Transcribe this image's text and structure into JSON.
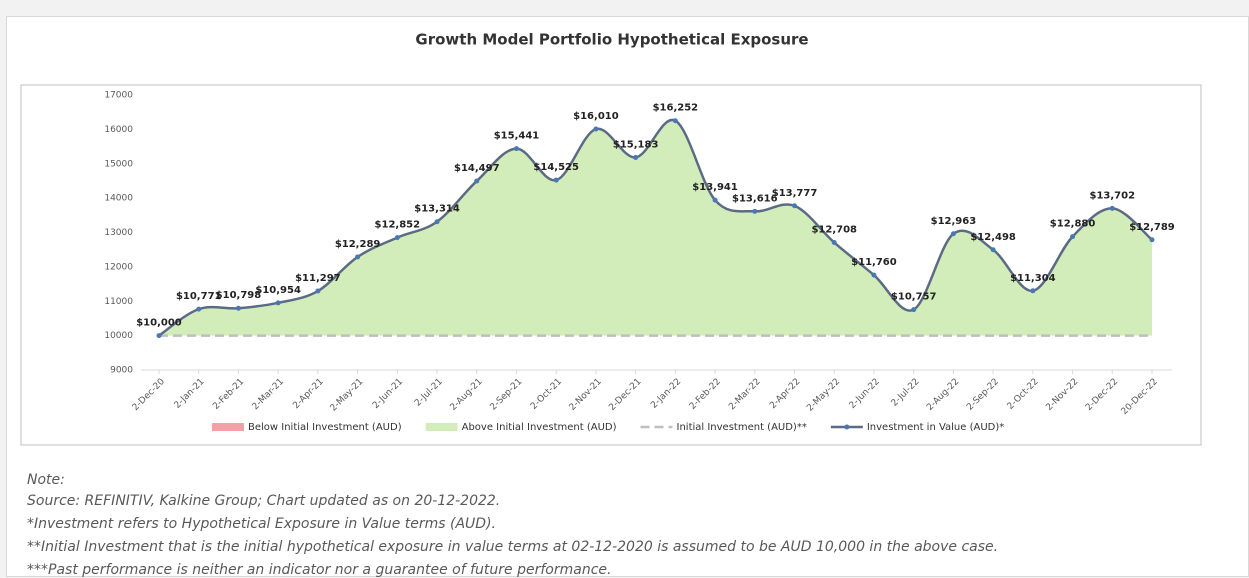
{
  "chart_data": {
    "type": "line",
    "title": "Growth Model Portfolio Hypothetical Exposure",
    "categories": [
      "2-Dec-20",
      "2-Jan-21",
      "2-Feb-21",
      "2-Mar-21",
      "2-Apr-21",
      "2-May-21",
      "2-Jun-21",
      "2-Jul-21",
      "2-Aug-21",
      "2-Sep-21",
      "2-Oct-21",
      "2-Nov-21",
      "2-Dec-21",
      "2-Jan-22",
      "2-Feb-22",
      "2-Mar-22",
      "2-Apr-22",
      "2-May-22",
      "2-Jun-22",
      "2-Jul-22",
      "2-Aug-22",
      "2-Sep-22",
      "2-Oct-22",
      "2-Nov-22",
      "2-Dec-22",
      "20-Dec-22"
    ],
    "series": [
      {
        "name": "Below Initial Investment (AUD)",
        "color": "#f4a0a6",
        "style": "area",
        "values": [
          null,
          null,
          null,
          null,
          null,
          null,
          null,
          null,
          null,
          null,
          null,
          null,
          null,
          null,
          null,
          null,
          null,
          null,
          null,
          null,
          null,
          null,
          null,
          null,
          null,
          null
        ]
      },
      {
        "name": "Above Initial Investment (AUD)",
        "color": "#d3edba",
        "style": "area",
        "values": [
          10000,
          10771,
          10798,
          10954,
          11297,
          12289,
          12852,
          13314,
          14497,
          15441,
          14525,
          16010,
          15183,
          16252,
          13941,
          13616,
          13777,
          12708,
          11760,
          10757,
          12963,
          12498,
          11304,
          12880,
          13702,
          12789
        ]
      },
      {
        "name": "Initial Investment (AUD)**",
        "color": "#bfbfbf",
        "style": "dashed",
        "values": [
          10000,
          10000,
          10000,
          10000,
          10000,
          10000,
          10000,
          10000,
          10000,
          10000,
          10000,
          10000,
          10000,
          10000,
          10000,
          10000,
          10000,
          10000,
          10000,
          10000,
          10000,
          10000,
          10000,
          10000,
          10000,
          10000
        ]
      },
      {
        "name": "Investment in Value (AUD)*",
        "color": "#5c6b84",
        "marker": "#4a78b5",
        "style": "line",
        "values": [
          10000,
          10771,
          10798,
          10954,
          11297,
          12289,
          12852,
          13314,
          14497,
          15441,
          14525,
          16010,
          15183,
          16252,
          13941,
          13616,
          13777,
          12708,
          11760,
          10757,
          12963,
          12498,
          11304,
          12880,
          13702,
          12789
        ],
        "value_labels": [
          "$10,000",
          "$10,771",
          "$10,798",
          "$10,954",
          "$11,297",
          "$12,289",
          "$12,852",
          "$13,314",
          "$14,497",
          "$15,441",
          "$14,525",
          "$16,010",
          "$15,183",
          "$16,252",
          "$13,941",
          "$13,616",
          "$13,777",
          "$12,708",
          "$11,760",
          "$10,757",
          "$12,963",
          "$12,498",
          "$11,304",
          "$12,880",
          "$13,702",
          "$12,789"
        ]
      }
    ],
    "ylim": [
      9000,
      17000
    ],
    "yticks": [
      9000,
      10000,
      11000,
      12000,
      13000,
      14000,
      15000,
      16000,
      17000
    ],
    "grid": false,
    "legend": "bottom"
  },
  "notes": {
    "heading": "Note:",
    "lines": [
      "Source: REFINITIV, Kalkine Group; Chart updated as on 20-12-2022.",
      "*Investment refers to Hypothetical Exposure in Value terms (AUD).",
      "**Initial Investment that is the initial hypothetical exposure in value terms at 02-12-2020 is assumed to be AUD 10,000 in the above case.",
      "***Past performance is neither an indicator nor a guarantee of future performance."
    ]
  }
}
